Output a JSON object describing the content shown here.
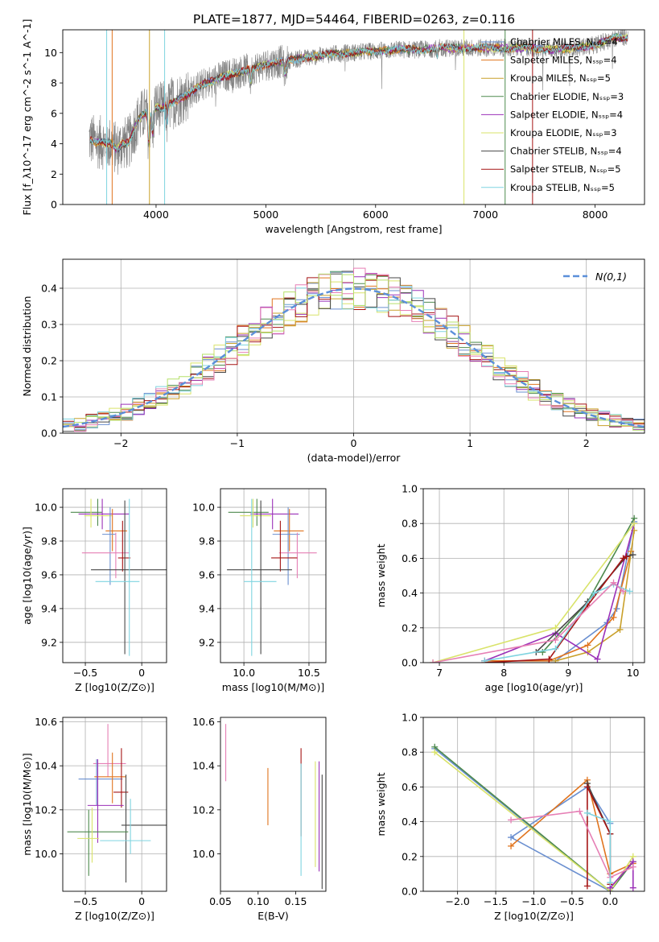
{
  "figure_title": "PLATE=1877, MJD=54464, FIBERID=0263, z=0.116",
  "colors": [
    "#6a8fd0",
    "#e0741e",
    "#c9a02a",
    "#4e8a4e",
    "#9b30b8",
    "#d9e36a",
    "#474747",
    "#a51414",
    "#7fd4e0",
    "#e67fb5",
    "#b6e06a"
  ],
  "chart_data": [
    {
      "id": "spectrum",
      "type": "line",
      "xlabel": "wavelength [Angstrom, rest frame]",
      "ylabel": "Flux [f_λ10^-17 erg cm^-2 s^-1 A^-1]",
      "xlim": [
        3150,
        8450
      ],
      "ylim": [
        0,
        11.5
      ],
      "xticks": [
        4000,
        5000,
        6000,
        7000,
        8000
      ],
      "yticks": [
        0,
        2,
        4,
        6,
        8,
        10
      ],
      "grid": false,
      "legend_position": "top-right",
      "data_color": "#808080",
      "x": [
        3400,
        3450,
        3500,
        3550,
        3600,
        3650,
        3700,
        3750,
        3800,
        3850,
        3900,
        3950,
        4000,
        4050,
        4100,
        4150,
        4200,
        4300,
        4400,
        4500,
        4600,
        4700,
        4800,
        4900,
        5000,
        5200,
        5400,
        5600,
        5800,
        6000,
        6200,
        6400,
        6600,
        6800,
        7000,
        7200,
        7400,
        7600,
        7800,
        8000,
        8200
      ],
      "model_flux": [
        4.3,
        4.1,
        4.1,
        4.0,
        4.1,
        4.3,
        4.6,
        5.0,
        5.4,
        5.7,
        6.0,
        6.2,
        6.4,
        6.3,
        6.5,
        6.7,
        6.9,
        7.3,
        7.8,
        8.1,
        8.4,
        8.6,
        8.8,
        9.0,
        9.2,
        9.5,
        9.7,
        9.9,
        10.0,
        10.1,
        10.2,
        10.2,
        10.3,
        10.3,
        10.3,
        10.3,
        10.3,
        10.2,
        10.3,
        10.5,
        11.0
      ],
      "series": [
        {
          "name": "Chabrier MILES, N_SSP=4",
          "color": "#6a8fd0"
        },
        {
          "name": "Salpeter MILES, N_SSP=4",
          "color": "#e0741e"
        },
        {
          "name": "Kroupa MILES, N_SSP=5",
          "color": "#c9a02a"
        },
        {
          "name": "Chabrier ELODIE, N_SSP=3",
          "color": "#4e8a4e"
        },
        {
          "name": "Salpeter ELODIE, N_SSP=4",
          "color": "#9b30b8"
        },
        {
          "name": "Kroupa ELODIE, N_SSP=3",
          "color": "#d9e36a"
        },
        {
          "name": "Chabrier STELIB, N_SSP=4",
          "color": "#474747"
        },
        {
          "name": "Salpeter STELIB, N_SSP=5",
          "color": "#a51414"
        },
        {
          "name": "Kroupa STELIB, N_SSP=5",
          "color": "#7fd4e0"
        }
      ]
    },
    {
      "id": "residuals",
      "type": "step",
      "xlabel": "(data-model)/error",
      "ylabel": "Normed distribution",
      "xlim": [
        -2.5,
        2.5
      ],
      "ylim": [
        0,
        0.48
      ],
      "xticks": [
        -2,
        -1,
        0,
        1,
        2
      ],
      "yticks": [
        0.0,
        0.1,
        0.2,
        0.3,
        0.4
      ],
      "grid": true,
      "legend_position": "top-right",
      "normal_label": "N(0,1)",
      "normal_color": "#5b8fd9",
      "bin_width": 0.1
    },
    {
      "id": "age_vs_Z",
      "type": "errorbar",
      "xlabel": "Z [log10(Z/Z⊙)]",
      "ylabel": "age [log10(age/yr)]",
      "xlim": [
        -0.7,
        0.22
      ],
      "ylim": [
        9.08,
        10.11
      ],
      "xticks": [
        -0.5,
        0.0
      ],
      "yticks": [
        9.2,
        9.4,
        9.6,
        9.8,
        10.0
      ],
      "grid": true,
      "points": [
        {
          "x": -0.39,
          "xerr": [
            0.24,
            0.04
          ],
          "y": 9.97,
          "yerr": [
            0.08,
            0.08
          ],
          "color": "#4e8a4e"
        },
        {
          "x": -0.35,
          "xerr": [
            0.21,
            0.24
          ],
          "y": 9.96,
          "yerr": [
            0.09,
            0.09
          ],
          "color": "#9b30b8"
        },
        {
          "x": -0.45,
          "xerr": [
            0.06,
            0.19
          ],
          "y": 9.95,
          "yerr": [
            0.07,
            0.1
          ],
          "color": "#d9e36a"
        },
        {
          "x": -0.26,
          "xerr": [
            0.06,
            0.13
          ],
          "y": 9.86,
          "yerr": [
            0.12,
            0.13
          ],
          "color": "#e0741e"
        },
        {
          "x": -0.28,
          "xerr": [
            0.07,
            0.05
          ],
          "y": 9.84,
          "yerr": [
            0.3,
            0.16
          ],
          "color": "#6a8fd0"
        },
        {
          "x": -0.23,
          "xerr": [
            0.3,
            0.12
          ],
          "y": 9.73,
          "yerr": [
            0.15,
            0.12
          ],
          "color": "#e67fb5"
        },
        {
          "x": -0.17,
          "xerr": [
            0.04,
            0.07
          ],
          "y": 9.7,
          "yerr": [
            0.08,
            0.22
          ],
          "color": "#a51414"
        },
        {
          "x": -0.15,
          "xerr": [
            0.3,
            0.37
          ],
          "y": 9.63,
          "yerr": [
            0.5,
            0.41
          ],
          "color": "#474747"
        },
        {
          "x": -0.11,
          "xerr": [
            0.3,
            0.09
          ],
          "y": 9.56,
          "yerr": [
            0.44,
            0.49
          ],
          "color": "#7fd4e0"
        }
      ]
    },
    {
      "id": "age_vs_mass",
      "type": "errorbar",
      "xlabel": "mass [log10(M/M⊙)]",
      "ylabel": "",
      "xlim": [
        9.82,
        10.63
      ],
      "ylim": [
        9.08,
        10.11
      ],
      "xticks": [
        10.0,
        10.5
      ],
      "yticks": [
        9.2,
        9.4,
        9.6,
        9.8,
        10.0
      ],
      "grid": true,
      "points": [
        {
          "x": 10.1,
          "xerr": [
            0.22,
            0.09
          ],
          "y": 9.97,
          "yerr": [
            0.08,
            0.08
          ],
          "color": "#4e8a4e"
        },
        {
          "x": 10.22,
          "xerr": [
            0.17,
            0.2
          ],
          "y": 9.96,
          "yerr": [
            0.09,
            0.09
          ],
          "color": "#9b30b8"
        },
        {
          "x": 10.07,
          "xerr": [
            0.1,
            0.14
          ],
          "y": 9.95,
          "yerr": [
            0.07,
            0.1
          ],
          "color": "#d9e36a"
        },
        {
          "x": 10.35,
          "xerr": [
            0.12,
            0.11
          ],
          "y": 9.86,
          "yerr": [
            0.12,
            0.13
          ],
          "color": "#e0741e"
        },
        {
          "x": 10.34,
          "xerr": [
            0.12,
            0.09
          ],
          "y": 9.84,
          "yerr": [
            0.3,
            0.16
          ],
          "color": "#6a8fd0"
        },
        {
          "x": 10.41,
          "xerr": [
            0.14,
            0.15
          ],
          "y": 9.73,
          "yerr": [
            0.15,
            0.12
          ],
          "color": "#e67fb5"
        },
        {
          "x": 10.28,
          "xerr": [
            0.07,
            0.13
          ],
          "y": 9.7,
          "yerr": [
            0.08,
            0.22
          ],
          "color": "#a51414"
        },
        {
          "x": 10.13,
          "xerr": [
            0.26,
            0.24
          ],
          "y": 9.63,
          "yerr": [
            0.5,
            0.41
          ],
          "color": "#474747"
        },
        {
          "x": 10.06,
          "xerr": [
            0.06,
            0.19
          ],
          "y": 9.56,
          "yerr": [
            0.44,
            0.49
          ],
          "color": "#7fd4e0"
        }
      ]
    },
    {
      "id": "weight_vs_age",
      "type": "line",
      "xlabel": "age [log10(age/yr)]",
      "ylabel": "mass weight",
      "xlim": [
        6.75,
        10.18
      ],
      "ylim": [
        0,
        1.0
      ],
      "xticks": [
        7,
        8,
        9,
        10
      ],
      "yticks": [
        0.0,
        0.2,
        0.4,
        0.6,
        0.8,
        1.0
      ],
      "grid": true,
      "series": [
        {
          "color": "#6a8fd0",
          "x": [
            7.7,
            8.8,
            9.6,
            9.75,
            10.02
          ],
          "y": [
            0.01,
            0.01,
            0.23,
            0.31,
            0.81
          ]
        },
        {
          "color": "#e0741e",
          "x": [
            7.7,
            8.7,
            9.3,
            9.7,
            9.97
          ],
          "y": [
            0.01,
            0.01,
            0.1,
            0.26,
            0.64
          ]
        },
        {
          "color": "#c9a02a",
          "x": [
            8.8,
            9.3,
            9.8,
            10.02
          ],
          "y": [
            0.01,
            0.06,
            0.19,
            0.76
          ]
        },
        {
          "color": "#4e8a4e",
          "x": [
            8.6,
            9.3,
            10.02
          ],
          "y": [
            0.06,
            0.35,
            0.83
          ]
        },
        {
          "color": "#9b30b8",
          "x": [
            7.7,
            8.8,
            9.45,
            10.02
          ],
          "y": [
            0.01,
            0.17,
            0.02,
            0.8
          ]
        },
        {
          "color": "#d9e36a",
          "x": [
            6.9,
            8.8,
            10.02
          ],
          "y": [
            0.0,
            0.2,
            0.8
          ]
        },
        {
          "color": "#474747",
          "x": [
            8.5,
            9.3,
            9.9,
            10.0
          ],
          "y": [
            0.06,
            0.35,
            0.61,
            0.62
          ]
        },
        {
          "color": "#a51414",
          "x": [
            7.7,
            8.7,
            9.3,
            9.85,
            9.9
          ],
          "y": [
            0.0,
            0.02,
            0.33,
            0.6,
            0.61
          ]
        },
        {
          "color": "#7fd4e0",
          "x": [
            7.7,
            8.8,
            9.4,
            9.7,
            9.95
          ],
          "y": [
            0.01,
            0.08,
            0.4,
            0.45,
            0.41
          ]
        },
        {
          "color": "#e67fb5",
          "x": [
            6.9,
            8.8,
            9.7,
            9.85
          ],
          "y": [
            0.0,
            0.13,
            0.46,
            0.41
          ]
        }
      ]
    },
    {
      "id": "mass_vs_Z",
      "type": "errorbar",
      "xlabel": "Z [log10(Z/Z⊙)]",
      "ylabel": "mass [log10(M/M⊙)]",
      "xlim": [
        -0.7,
        0.22
      ],
      "ylim": [
        9.83,
        10.62
      ],
      "xticks": [
        -0.5,
        0.0
      ],
      "yticks": [
        10.0,
        10.2,
        10.4,
        10.6
      ],
      "grid": true,
      "points": [
        {
          "x": -0.3,
          "xerr": [
            0.13,
            0.16
          ],
          "y": 10.41,
          "yerr": [
            0.06,
            0.18
          ],
          "color": "#e67fb5"
        },
        {
          "x": -0.4,
          "xerr": [
            0.16,
            0.23
          ],
          "y": 10.34,
          "yerr": [
            0.12,
            0.09
          ],
          "color": "#6a8fd0"
        },
        {
          "x": -0.26,
          "xerr": [
            0.16,
            0.12
          ],
          "y": 10.35,
          "yerr": [
            0.12,
            0.11
          ],
          "color": "#e0741e"
        },
        {
          "x": -0.18,
          "xerr": [
            0.07,
            0.06
          ],
          "y": 10.28,
          "yerr": [
            0.07,
            0.2
          ],
          "color": "#a51414"
        },
        {
          "x": -0.39,
          "xerr": [
            0.09,
            0.23
          ],
          "y": 10.22,
          "yerr": [
            0.17,
            0.21
          ],
          "color": "#9b30b8"
        },
        {
          "x": -0.14,
          "xerr": [
            0.04,
            0.36
          ],
          "y": 10.13,
          "yerr": [
            0.26,
            0.23
          ],
          "color": "#474747"
        },
        {
          "x": -0.47,
          "xerr": [
            0.19,
            0.35
          ],
          "y": 10.1,
          "yerr": [
            0.2,
            0.1
          ],
          "color": "#4e8a4e"
        },
        {
          "x": -0.44,
          "xerr": [
            0.13,
            0.06
          ],
          "y": 10.07,
          "yerr": [
            0.11,
            0.14
          ],
          "color": "#d9e36a"
        },
        {
          "x": -0.1,
          "xerr": [
            0.27,
            0.18
          ],
          "y": 10.06,
          "yerr": [
            0.06,
            0.19
          ],
          "color": "#7fd4e0"
        }
      ]
    },
    {
      "id": "mass_vs_ebv",
      "type": "errorbar",
      "xlabel": "E(B-V)",
      "ylabel": "",
      "xlim": [
        0.05,
        0.19
      ],
      "ylim": [
        9.83,
        10.62
      ],
      "xticks": [
        0.05,
        0.1,
        0.15
      ],
      "xtick_labels": [
        "0.05",
        "0.10",
        "0.15"
      ],
      "yticks": [
        10.0,
        10.2,
        10.4,
        10.6
      ],
      "grid": false,
      "points": [
        {
          "x": 0.057,
          "y": 10.46,
          "yerr": [
            0.13,
            0.13
          ],
          "color": "#e67fb5"
        },
        {
          "x": 0.113,
          "y": 10.26,
          "yerr": [
            0.13,
            0.13
          ],
          "color": "#e0741e"
        },
        {
          "x": 0.157,
          "y": 10.31,
          "yerr": [
            0.23,
            0.17
          ],
          "color": "#a51414"
        },
        {
          "x": 0.157,
          "y": 10.2,
          "yerr": [
            0.3,
            0.21
          ],
          "color": "#7fd4e0"
        },
        {
          "x": 0.176,
          "y": 10.18,
          "yerr": [
            0.24,
            0.24
          ],
          "color": "#d9e36a"
        },
        {
          "x": 0.181,
          "y": 10.2,
          "yerr": [
            0.28,
            0.22
          ],
          "color": "#9b30b8"
        },
        {
          "x": 0.185,
          "y": 10.11,
          "yerr": [
            0.27,
            0.25
          ],
          "color": "#474747"
        }
      ]
    },
    {
      "id": "weight_vs_Z",
      "type": "line",
      "xlabel": "Z [log10(Z/Z⊙)]",
      "ylabel": "mass weight",
      "xlim": [
        -2.45,
        0.45
      ],
      "ylim": [
        0,
        1.0
      ],
      "xticks": [
        -2.0,
        -1.5,
        -1.0,
        -0.5,
        0.0
      ],
      "yticks": [
        0.0,
        0.2,
        0.4,
        0.6,
        0.8,
        1.0
      ],
      "grid": true,
      "series": [
        {
          "color": "#6a8fd0",
          "x": [
            -2.3,
            0.0,
            -1.3,
            -0.3,
            0.0
          ],
          "y": [
            0.82,
            0.0,
            0.31,
            0.6,
            0.39
          ]
        },
        {
          "color": "#e0741e",
          "x": [
            -1.3,
            -0.3,
            0.0,
            0.3
          ],
          "y": [
            0.26,
            0.64,
            0.1,
            0.16
          ]
        },
        {
          "color": "#4e8a4e",
          "x": [
            -2.3,
            0.0,
            0.3
          ],
          "y": [
            0.83,
            0.0,
            0.17
          ]
        },
        {
          "color": "#d9e36a",
          "x": [
            -2.3,
            0.0,
            0.3
          ],
          "y": [
            0.8,
            0.0,
            0.2
          ]
        },
        {
          "color": "#474747",
          "x": [
            -0.3,
            0.0,
            0.0
          ],
          "y": [
            0.62,
            0.33,
            0.02
          ]
        },
        {
          "color": "#a51414",
          "x": [
            -0.3,
            -0.3,
            0.0,
            0.0
          ],
          "y": [
            0.03,
            0.6,
            0.33,
            0.04
          ]
        },
        {
          "color": "#9b30b8",
          "x": [
            0.0,
            0.3,
            0.3
          ],
          "y": [
            0.02,
            0.17,
            0.02
          ]
        },
        {
          "color": "#e67fb5",
          "x": [
            -1.3,
            -0.4,
            0.0,
            0.3
          ],
          "y": [
            0.41,
            0.46,
            0.08,
            0.14
          ]
        },
        {
          "color": "#7fd4e0",
          "x": [
            -0.3,
            0.0,
            0.0
          ],
          "y": [
            0.45,
            0.4,
            0.05
          ]
        }
      ]
    }
  ]
}
